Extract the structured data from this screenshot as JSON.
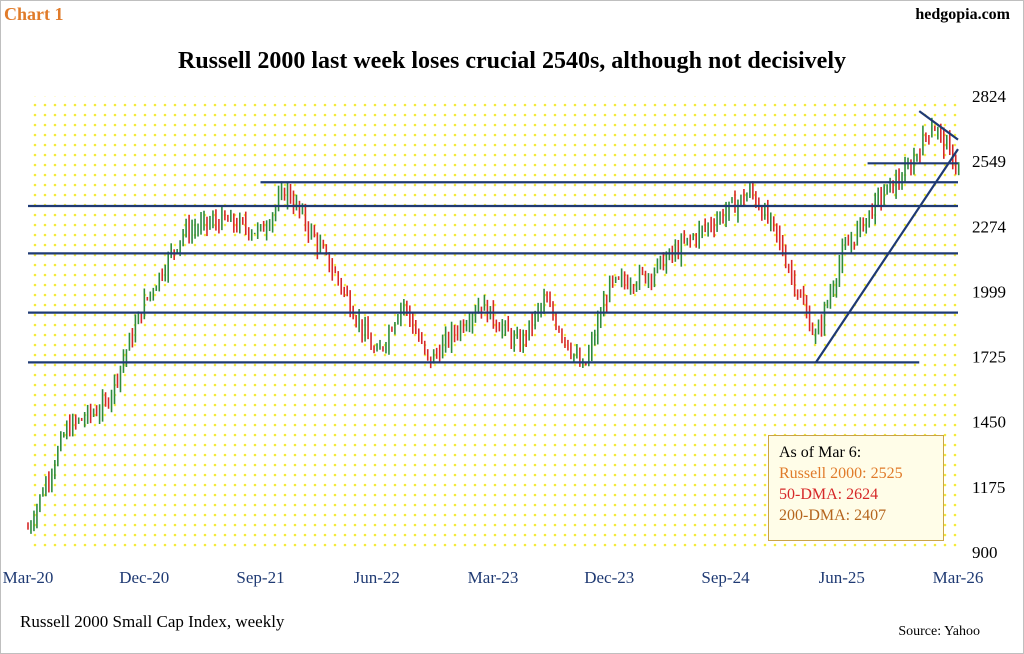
{
  "header": {
    "chart_number": "Chart 1",
    "site": "hedgopia.com"
  },
  "footer": {
    "subtitle": "Russell 2000 Small Cap Index, weekly",
    "source": "Source: Yahoo"
  },
  "legend": {
    "heading": "As of Mar 6:",
    "russell": "Russell 2000: 2525",
    "dma50": "50-DMA: 2624",
    "dma200": "200-DMA: 2407"
  },
  "colors": {
    "up_bar": "#2e8b3e",
    "down_bar": "#d62828",
    "trendline": "#1f3a73",
    "background_dots": "#f4ea3a",
    "chart_number": "#e07b2a",
    "legend_russell": "#e07b2a",
    "legend_50dma": "#d62828",
    "legend_200dma": "#b5651d"
  },
  "chart_data": {
    "type": "ohlc-bar",
    "title": "Russell 2000 last week loses crucial 2540s, although not decisively",
    "xlabel": "",
    "ylabel": "",
    "ylim": [
      900,
      2824
    ],
    "yticks": [
      900,
      1175,
      1450,
      1725,
      1999,
      2274,
      2549,
      2824
    ],
    "xlim": [
      "2020-03",
      "2026-03"
    ],
    "xticks": [
      "Mar-20",
      "Dec-20",
      "Sep-21",
      "Jun-22",
      "Mar-23",
      "Dec-23",
      "Sep-24",
      "Jun-25",
      "Mar-26"
    ],
    "key_points": [
      {
        "date": "2020-03",
        "close": 1000
      },
      {
        "date": "2020-06",
        "close": 1420
      },
      {
        "date": "2020-09",
        "close": 1520
      },
      {
        "date": "2020-12",
        "close": 1950
      },
      {
        "date": "2021-03",
        "close": 2250
      },
      {
        "date": "2021-06",
        "close": 2300
      },
      {
        "date": "2021-09",
        "close": 2250
      },
      {
        "date": "2021-11",
        "close": 2430
      },
      {
        "date": "2022-03",
        "close": 2050
      },
      {
        "date": "2022-06",
        "close": 1720
      },
      {
        "date": "2022-08",
        "close": 1960
      },
      {
        "date": "2022-10",
        "close": 1700
      },
      {
        "date": "2023-02",
        "close": 1950
      },
      {
        "date": "2023-05",
        "close": 1770
      },
      {
        "date": "2023-07",
        "close": 1960
      },
      {
        "date": "2023-10",
        "close": 1660
      },
      {
        "date": "2023-12",
        "close": 2020
      },
      {
        "date": "2024-03",
        "close": 2070
      },
      {
        "date": "2024-07",
        "close": 2250
      },
      {
        "date": "2024-11",
        "close": 2420
      },
      {
        "date": "2025-01",
        "close": 2230
      },
      {
        "date": "2025-04",
        "close": 1800
      },
      {
        "date": "2025-06",
        "close": 2150
      },
      {
        "date": "2025-09",
        "close": 2400
      },
      {
        "date": "2025-11",
        "close": 2500
      },
      {
        "date": "2026-01",
        "close": 2710
      },
      {
        "date": "2026-03",
        "close": 2525
      }
    ],
    "horizontal_levels": [
      {
        "value": 2460,
        "from": "2021-09",
        "to": "2026-03"
      },
      {
        "value": 2360,
        "from": "2020-03",
        "to": "2026-03"
      },
      {
        "value": 2160,
        "from": "2020-03",
        "to": "2026-03"
      },
      {
        "value": 1910,
        "from": "2020-03",
        "to": "2026-03"
      },
      {
        "value": 1700,
        "from": "2020-03",
        "to": "2025-12"
      },
      {
        "value": 2540,
        "from": "2025-08",
        "to": "2026-03"
      }
    ],
    "trendlines": [
      {
        "name": "rising",
        "from": {
          "date": "2025-04",
          "value": 1700
        },
        "to": {
          "date": "2026-03",
          "value": 2600
        }
      },
      {
        "name": "falling",
        "from": {
          "date": "2025-12",
          "value": 2760
        },
        "to": {
          "date": "2026-03",
          "value": 2640
        }
      }
    ],
    "grid": false,
    "legend_placement": "bottom-right"
  }
}
